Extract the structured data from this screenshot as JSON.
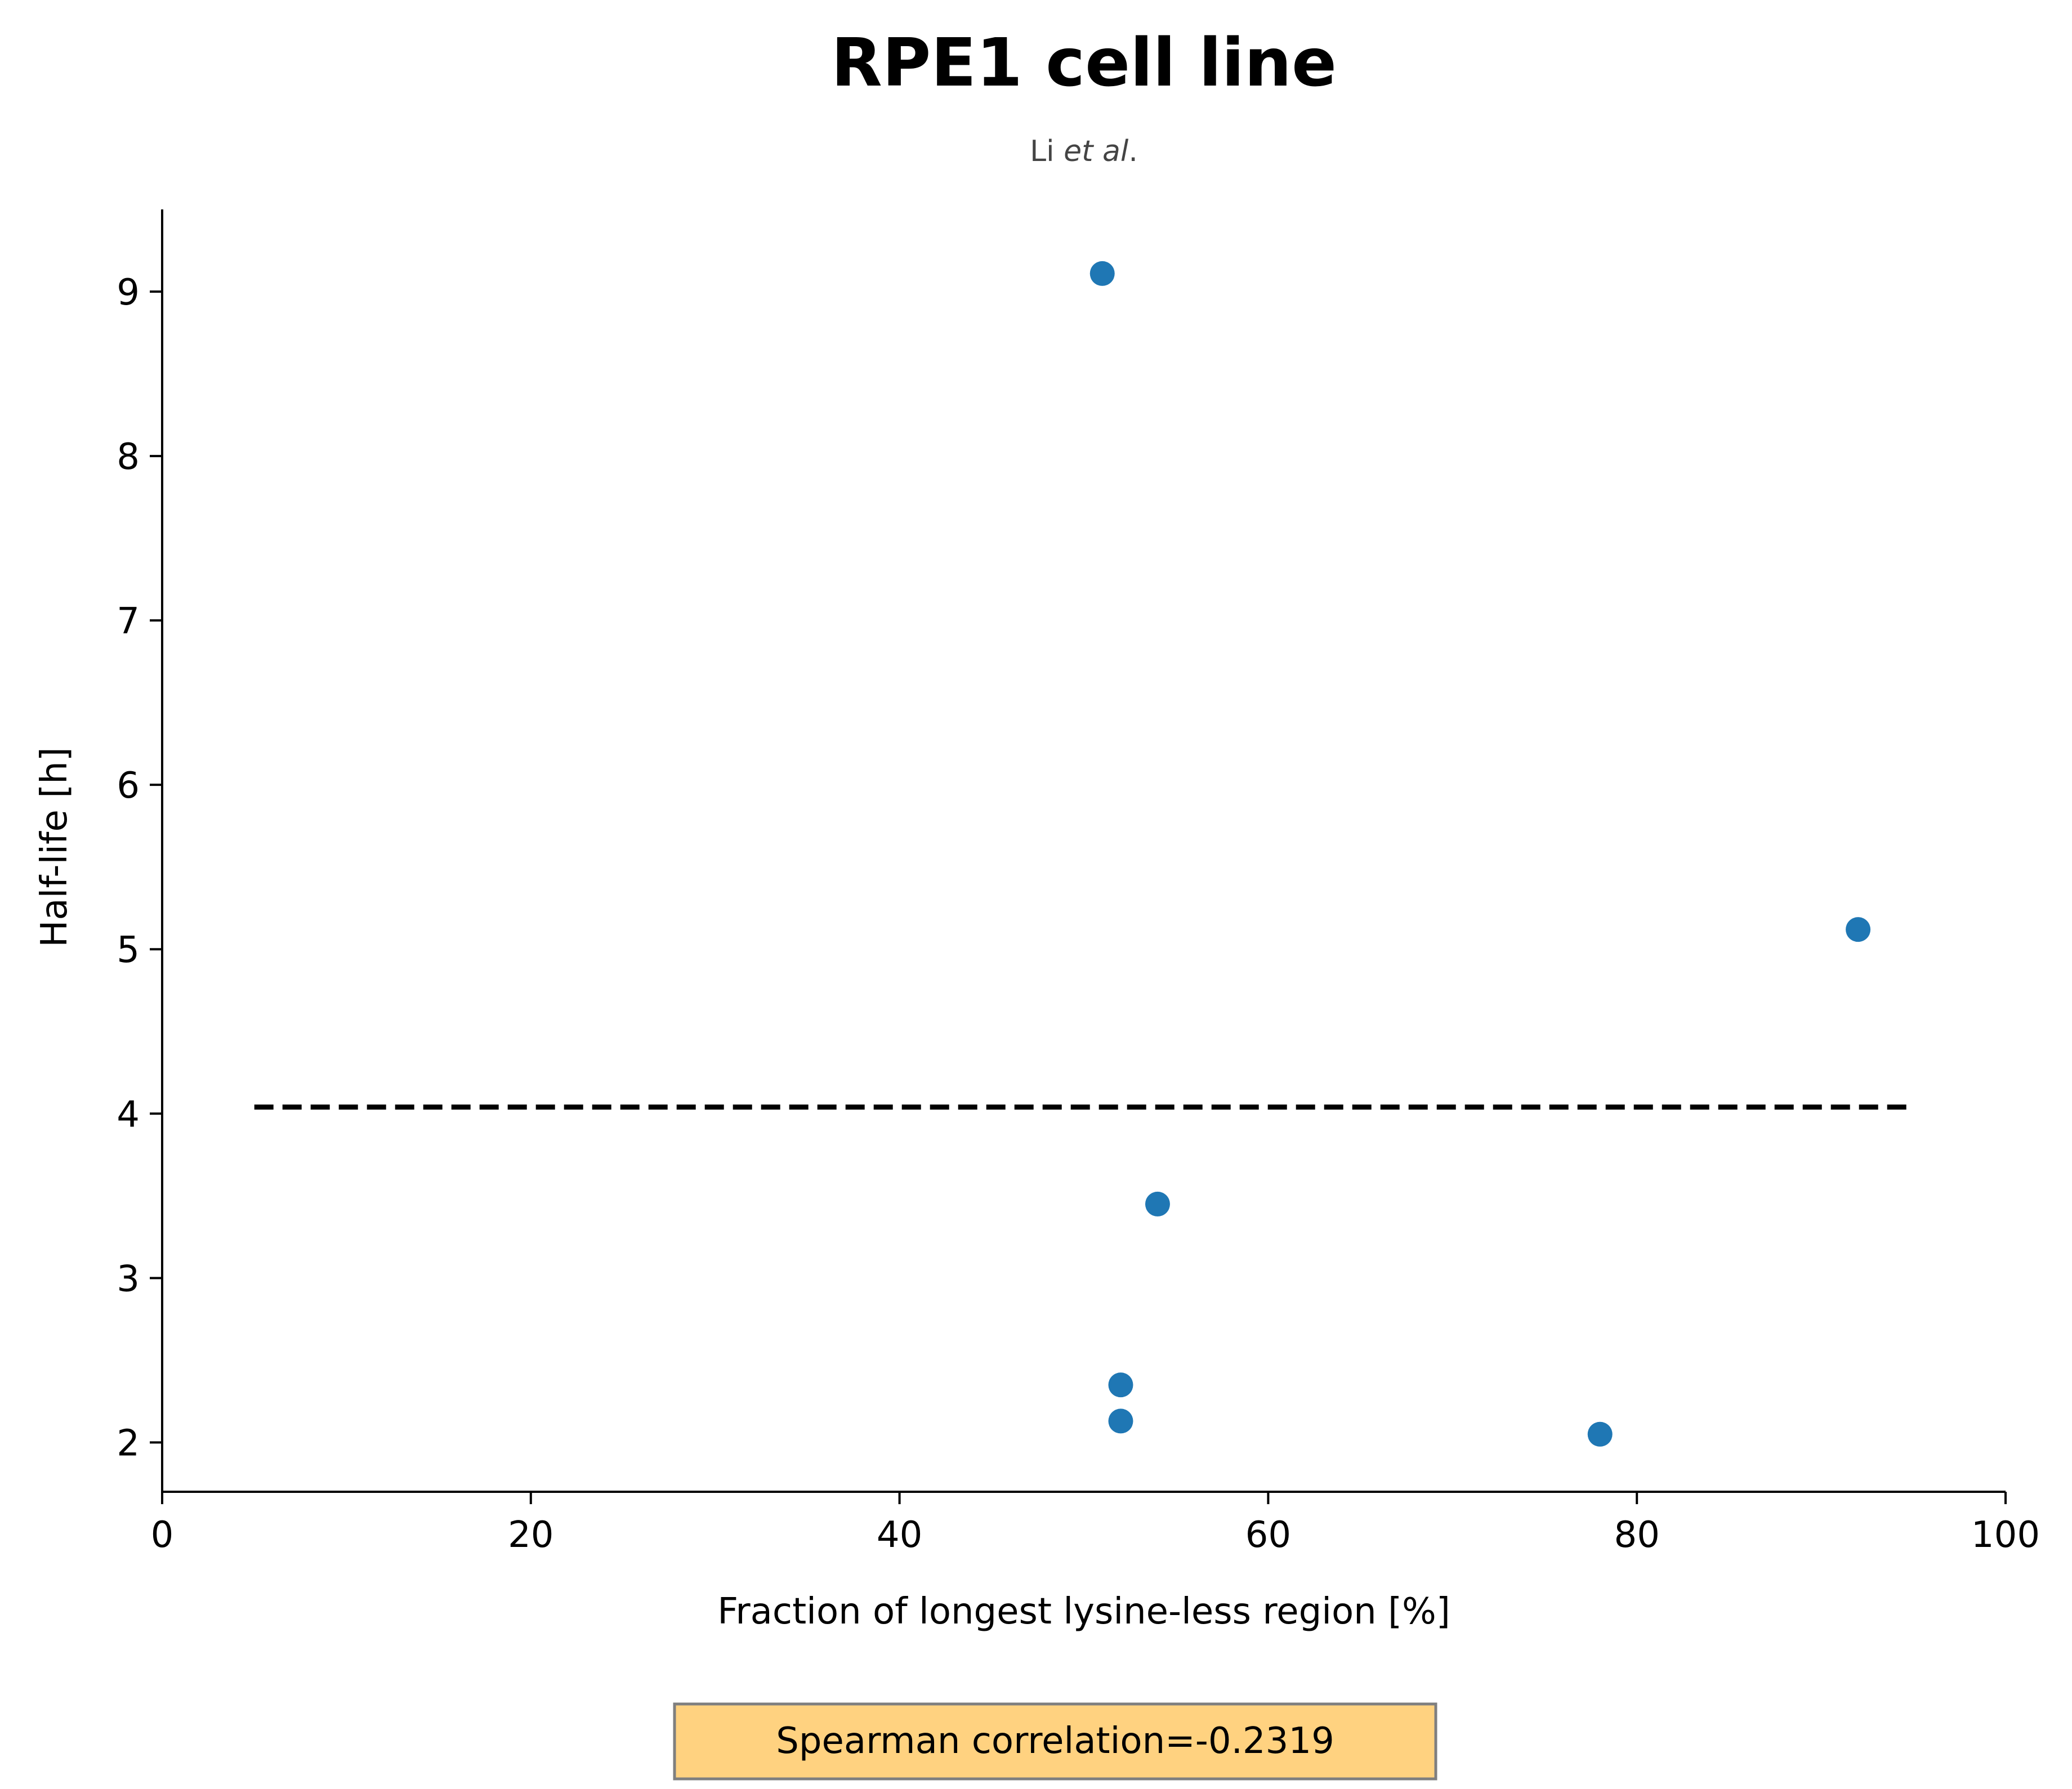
{
  "chart_data": {
    "type": "scatter",
    "title": "RPE1 cell line",
    "subtitle": {
      "text": "Li",
      "emphasis": "et al",
      "suffix": "."
    },
    "xlabel": "Fraction of longest lysine-less region [%]",
    "ylabel": "Half-life [h]",
    "xlim": [
      0,
      100
    ],
    "ylim": [
      1.7,
      9.5
    ],
    "xticks": [
      0,
      20,
      40,
      60,
      80,
      100
    ],
    "yticks": [
      2,
      3,
      4,
      5,
      6,
      7,
      8,
      9
    ],
    "grid": false,
    "series": [
      {
        "x": [
          51,
          52,
          52,
          54,
          78,
          92
        ],
        "y": [
          9.11,
          2.35,
          2.13,
          3.45,
          2.05,
          5.12
        ],
        "color": "#1f77b4"
      }
    ],
    "reference_line": {
      "style": "dashed",
      "color": "#000000",
      "x": [
        5,
        95
      ],
      "y": [
        4.04,
        4.04
      ]
    },
    "annotation": {
      "text": "Spearman correlation=-0.2319",
      "background": "#ffd280",
      "border": "#7f7f7f"
    }
  }
}
